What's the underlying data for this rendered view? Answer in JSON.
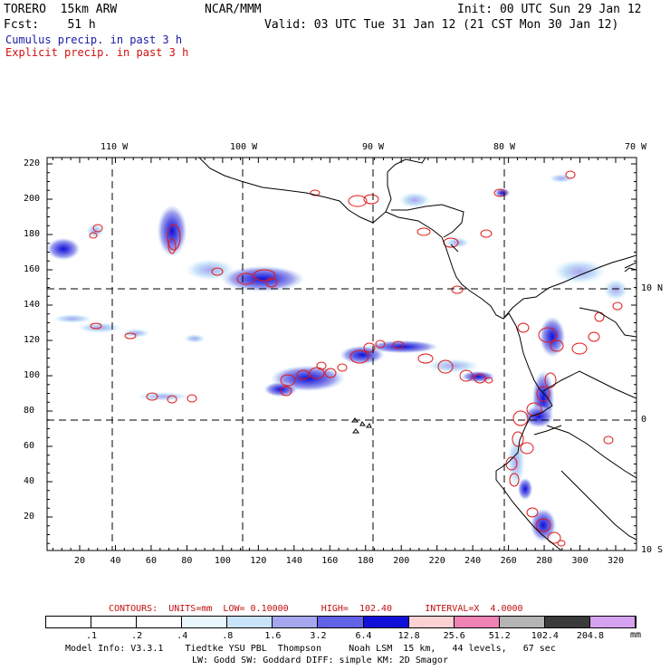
{
  "header": {
    "model": "TORERO  15km ARW",
    "org": "NCAR/MMM",
    "init": "Init: 00 UTC Sun 29 Jan 12",
    "fcst": "Fcst:    51 h",
    "valid": "Valid: 03 UTC Tue 31 Jan 12 (21 CST Mon 30 Jan 12)",
    "cumulus": "Cumulus precip. in past 3 h",
    "explicit": "Explicit precip. in past 3 h"
  },
  "colors": {
    "cumulus_title": "#1a1aa6",
    "explicit_title": "#d01010",
    "explicit_contour": "#e01818",
    "land_outline": "#000000",
    "grid": "#000000"
  },
  "axes": {
    "top_labels": [
      "110 W",
      "100 W",
      "90 W",
      "80 W",
      "70 W"
    ],
    "right_labels": [
      "10 N",
      "0",
      "10 S"
    ],
    "left_labels": [
      "220",
      "200",
      "180",
      "160",
      "140",
      "120",
      "100",
      "80",
      "60",
      "40",
      "20"
    ],
    "bottom_labels": [
      "20",
      "40",
      "60",
      "80",
      "100",
      "120",
      "140",
      "160",
      "180",
      "200",
      "220",
      "240",
      "260",
      "280",
      "300",
      "320"
    ]
  },
  "footer": {
    "contours": "CONTOURS:  UNITS=mm  LOW= 0.10000      HIGH=  102.40      INTERVAL=X  4.0000",
    "units": "mm",
    "model_info": "Model Info: V3.3.1    Tiedtke YSU PBL  Thompson     Noah LSM  15 km,   44 levels,   67 sec",
    "model_info2": "LW: Godd SW: Goddard DIFF: simple KM: 2D Smagor"
  },
  "colorbar": {
    "labels": [
      ".1",
      ".2",
      ".4",
      ".8",
      "1.6",
      "3.2",
      "6.4",
      "12.8",
      "25.6",
      "51.2",
      "102.4",
      "204.8"
    ],
    "colors": [
      "#ffffff",
      "#ffffff",
      "#ffffff",
      "#eaf6fd",
      "#c9e4fa",
      "#a6a6ee",
      "#6262e6",
      "#1010d8",
      "#fbd1d4",
      "#ee82b5",
      "#b4b4b4",
      "#3b3b3b",
      "#d6a2f0"
    ]
  }
}
